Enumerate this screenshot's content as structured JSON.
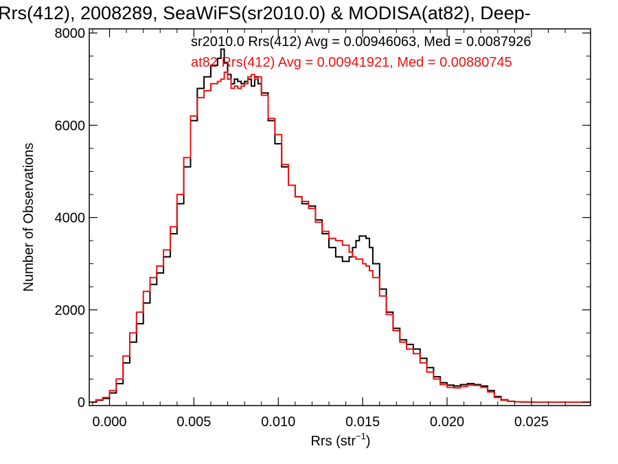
{
  "chart_data": {
    "type": "line",
    "title": "Rrs(412), 2008289, SeaWiFS(sr2010.0) & MODISA(at82), Deep-",
    "xlabel_main": "Rrs (str",
    "xlabel_sup": "−1",
    "xlabel_close": ")",
    "ylabel": "Number of Observations",
    "xlim": [
      -0.0012,
      0.0285
    ],
    "ylim": [
      0,
      8000
    ],
    "x_ticks": [
      0.0,
      0.005,
      0.01,
      0.015,
      0.02,
      0.025
    ],
    "x_tick_labels": [
      "0.000",
      "0.005",
      "0.010",
      "0.015",
      "0.020",
      "0.025"
    ],
    "y_ticks": [
      0,
      2000,
      4000,
      6000,
      8000
    ],
    "y_tick_labels": [
      "0",
      "2000",
      "4000",
      "6000",
      "8000"
    ],
    "grid": false,
    "legend": "top-right",
    "colors": {
      "sr2010": "#000000",
      "at82": "#ee1111"
    },
    "annotations": [
      {
        "text": "sr2010.0 Rrs(412) Avg = 0.00946063, Med = 0.0087926",
        "color": "#000000"
      },
      {
        "text": "at82 Rrs(412) Avg = 0.00941921, Med = 0.00880745",
        "color": "#ee1111"
      }
    ],
    "series": [
      {
        "key": "sr2010",
        "x": [
          -0.0012,
          -0.0008,
          -0.0004,
          0.0,
          0.0004,
          0.0008,
          0.0012,
          0.0016,
          0.002,
          0.0024,
          0.0028,
          0.0032,
          0.0036,
          0.004,
          0.0044,
          0.0048,
          0.0052,
          0.0056,
          0.006,
          0.0064,
          0.0066,
          0.0068,
          0.007,
          0.0072,
          0.0074,
          0.0076,
          0.0078,
          0.008,
          0.0082,
          0.0084,
          0.0086,
          0.0088,
          0.009,
          0.0094,
          0.0098,
          0.0102,
          0.0106,
          0.011,
          0.0114,
          0.0118,
          0.0122,
          0.0126,
          0.013,
          0.0134,
          0.0138,
          0.0142,
          0.0144,
          0.0146,
          0.0148,
          0.015,
          0.0152,
          0.0154,
          0.0156,
          0.016,
          0.0164,
          0.0168,
          0.0172,
          0.0176,
          0.018,
          0.0184,
          0.0188,
          0.0192,
          0.0196,
          0.02,
          0.0204,
          0.0208,
          0.0212,
          0.0216,
          0.022,
          0.0224,
          0.0228,
          0.0232,
          0.0236,
          0.024,
          0.0244,
          0.0248,
          0.0252,
          0.0256,
          0.026,
          0.0264,
          0.0268,
          0.0272,
          0.0276,
          0.028,
          0.0285
        ],
        "values": [
          0,
          40,
          80,
          200,
          400,
          850,
          1300,
          1700,
          2150,
          2550,
          2800,
          3150,
          3650,
          4300,
          5100,
          6100,
          6800,
          7050,
          7300,
          7450,
          7650,
          7350,
          7100,
          6900,
          7000,
          6950,
          6900,
          6950,
          7000,
          6850,
          7050,
          6900,
          6700,
          6100,
          5600,
          5100,
          4700,
          4450,
          4300,
          4250,
          3950,
          3650,
          3350,
          3150,
          3050,
          3150,
          3350,
          3500,
          3600,
          3600,
          3550,
          3350,
          3000,
          2450,
          1950,
          1600,
          1350,
          1250,
          1150,
          950,
          750,
          550,
          420,
          370,
          350,
          380,
          400,
          380,
          350,
          250,
          120,
          50,
          20,
          8,
          4,
          2,
          0,
          0,
          0,
          0,
          0,
          0,
          0,
          0,
          0
        ]
      },
      {
        "key": "at82",
        "x": [
          -0.0012,
          -0.0008,
          -0.0004,
          0.0,
          0.0004,
          0.0008,
          0.0012,
          0.0016,
          0.002,
          0.0024,
          0.0028,
          0.0032,
          0.0036,
          0.004,
          0.0044,
          0.0048,
          0.0052,
          0.0056,
          0.006,
          0.0064,
          0.0066,
          0.0068,
          0.007,
          0.0072,
          0.0074,
          0.0076,
          0.0078,
          0.008,
          0.0082,
          0.0084,
          0.0086,
          0.0088,
          0.009,
          0.0094,
          0.0098,
          0.0102,
          0.0106,
          0.011,
          0.0114,
          0.0118,
          0.0122,
          0.0126,
          0.013,
          0.0134,
          0.0138,
          0.0142,
          0.0144,
          0.0146,
          0.0148,
          0.015,
          0.0152,
          0.0154,
          0.0156,
          0.016,
          0.0164,
          0.0168,
          0.0172,
          0.0176,
          0.018,
          0.0184,
          0.0188,
          0.0192,
          0.0196,
          0.02,
          0.0204,
          0.0208,
          0.0212,
          0.0216,
          0.022,
          0.0224,
          0.0228,
          0.0232,
          0.0236,
          0.024,
          0.0244,
          0.0248,
          0.0252,
          0.0256,
          0.026,
          0.0264,
          0.0268,
          0.0272,
          0.0276,
          0.028,
          0.0285
        ],
        "values": [
          0,
          50,
          100,
          250,
          500,
          1000,
          1500,
          1950,
          2400,
          2700,
          2950,
          3300,
          3800,
          4500,
          5300,
          6200,
          6600,
          6750,
          6900,
          6950,
          7000,
          7150,
          7000,
          6800,
          6850,
          6800,
          6850,
          6900,
          7050,
          7100,
          7000,
          7050,
          6650,
          6150,
          5800,
          5150,
          4700,
          4450,
          4350,
          4200,
          3900,
          3700,
          3550,
          3500,
          3400,
          3250,
          3150,
          3100,
          3100,
          3000,
          2950,
          2850,
          2700,
          2300,
          1900,
          1550,
          1300,
          1150,
          1050,
          850,
          650,
          500,
          380,
          320,
          310,
          340,
          370,
          360,
          320,
          220,
          100,
          40,
          15,
          6,
          3,
          1,
          0,
          0,
          0,
          0,
          0,
          0,
          0,
          0,
          0
        ]
      }
    ]
  }
}
